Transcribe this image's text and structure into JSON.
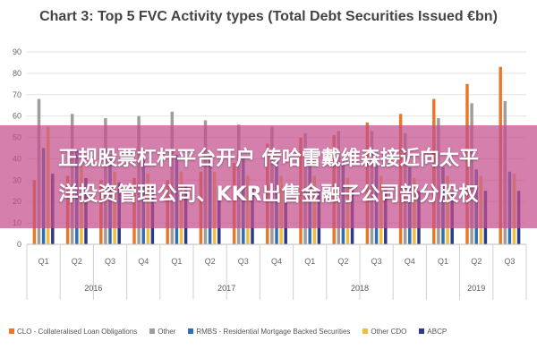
{
  "chart_data": {
    "type": "bar",
    "title": "Chart 3: Top 5 FVC Activity types (Total Debt Securities Issued €bn)",
    "categories": [
      "Q1",
      "Q2",
      "Q3",
      "Q4",
      "Q1",
      "Q2",
      "Q3",
      "Q4",
      "Q1",
      "Q2",
      "Q3",
      "Q4",
      "Q1",
      "Q2",
      "Q3"
    ],
    "years": [
      {
        "label": "2016",
        "start": 0,
        "count": 4
      },
      {
        "label": "2017",
        "start": 4,
        "count": 4
      },
      {
        "label": "2018",
        "start": 8,
        "count": 4
      },
      {
        "label": "2019",
        "start": 12,
        "count": 3
      }
    ],
    "ylim": [
      0,
      90
    ],
    "yticks": [
      0,
      10,
      20,
      30,
      40,
      50,
      60,
      70,
      80,
      90
    ],
    "grid": true,
    "legend_position": "bottom",
    "series": [
      {
        "name": "CLO - Collateralised Loan Obligations",
        "color": "#e8792b",
        "values": [
          30,
          32,
          30,
          31,
          30,
          34,
          38,
          47,
          50,
          51,
          57,
          61,
          68,
          75,
          83
        ]
      },
      {
        "name": "Other",
        "color": "#9e9e9e",
        "values": [
          68,
          61,
          59,
          60,
          62,
          58,
          56,
          55,
          52,
          53,
          53,
          52,
          59,
          66,
          67
        ]
      },
      {
        "name": "RMBS - Residential Mortgage Backed Securities",
        "color": "#2f6fb5",
        "values": [
          45,
          44,
          42,
          40,
          42,
          41,
          40,
          39,
          38,
          38,
          37,
          36,
          36,
          35,
          34
        ]
      },
      {
        "name": "Other CDO",
        "color": "#f2bd3a",
        "values": [
          55,
          37,
          34,
          33,
          34,
          34,
          32,
          32,
          32,
          31,
          32,
          31,
          32,
          32,
          33
        ]
      },
      {
        "name": "ABCP",
        "color": "#2b3a8c",
        "values": [
          33,
          31,
          29,
          28,
          28,
          27,
          26,
          26,
          26,
          26,
          26,
          25,
          25,
          25,
          25
        ]
      }
    ]
  },
  "overlay": {
    "line1": "正规股票杠杆平台开户 传哈雷戴维森接近向太平",
    "line2": "洋投资管理公司、KKR出售金融子公司部分股权"
  }
}
